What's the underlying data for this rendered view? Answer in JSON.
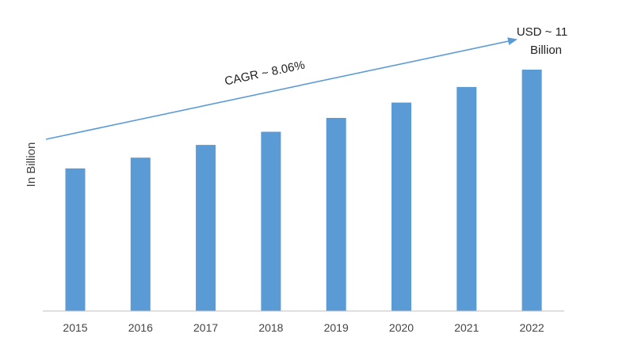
{
  "chart_data": {
    "type": "bar",
    "categories": [
      "2015",
      "2016",
      "2017",
      "2018",
      "2019",
      "2020",
      "2021",
      "2022"
    ],
    "values": [
      6.5,
      6.99,
      7.57,
      8.17,
      8.8,
      9.5,
      10.21,
      11.0
    ],
    "ylabel": "In Billion",
    "xlabel": "",
    "ylim": [
      0,
      11.0
    ],
    "grid": false,
    "annotations": {
      "cagr": "CAGR ~ 8.06%",
      "endpoint_line1": "USD ~ 11",
      "endpoint_line2": "Billion"
    }
  },
  "colors": {
    "bar": "#5b9bd5",
    "arrow": "#5b9bd5",
    "axis": "#bfbfbf"
  }
}
